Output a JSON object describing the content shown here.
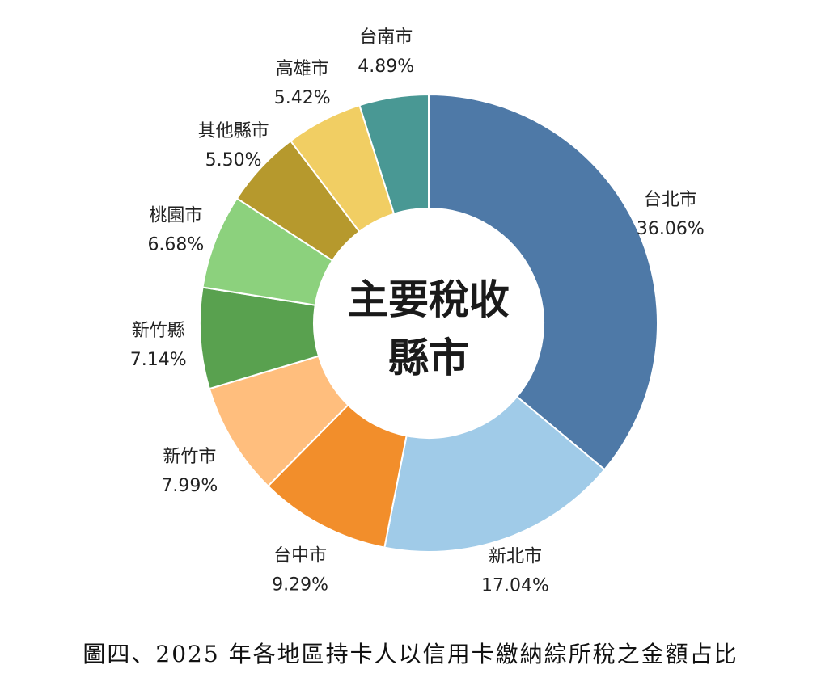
{
  "chart_data": {
    "type": "pie",
    "donut": true,
    "center_title_lines": [
      "主要稅收",
      "縣市"
    ],
    "slices": [
      {
        "label": "台北市",
        "value": 36.06,
        "value_label": "36.06%",
        "color": "#4e79a7"
      },
      {
        "label": "新北市",
        "value": 17.04,
        "value_label": "17.04%",
        "color": "#a0cbe8"
      },
      {
        "label": "台中市",
        "value": 9.29,
        "value_label": "9.29%",
        "color": "#f28e2b"
      },
      {
        "label": "新竹市",
        "value": 7.99,
        "value_label": "7.99%",
        "color": "#ffbe7d"
      },
      {
        "label": "新竹縣",
        "value": 7.14,
        "value_label": "7.14%",
        "color": "#59a14f"
      },
      {
        "label": "桃園市",
        "value": 6.68,
        "value_label": "6.68%",
        "color": "#8cd17d"
      },
      {
        "label": "其他縣市",
        "value": 5.5,
        "value_label": "5.50%",
        "color": "#b6992d"
      },
      {
        "label": "高雄市",
        "value": 5.42,
        "value_label": "5.42%",
        "color": "#f1ce63"
      },
      {
        "label": "台南市",
        "value": 4.89,
        "value_label": "4.89%",
        "color": "#499894"
      }
    ],
    "start": "12 o'clock",
    "direction": "clockwise"
  },
  "caption": "圖四、2025 年各地區持卡人以信用卡繳納綜所稅之金額占比"
}
